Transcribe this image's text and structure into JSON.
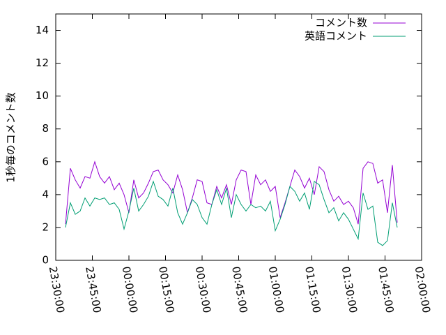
{
  "chart_data": {
    "type": "line",
    "ylabel": "1秒毎のコメント数",
    "x": [
      "23:34:00",
      "23:36:00",
      "23:38:00",
      "23:40:00",
      "23:42:00",
      "23:44:00",
      "23:46:00",
      "23:48:00",
      "23:50:00",
      "23:52:00",
      "23:54:00",
      "23:56:00",
      "23:58:00",
      "00:00:00",
      "00:02:00",
      "00:04:00",
      "00:06:00",
      "00:08:00",
      "00:10:00",
      "00:12:00",
      "00:14:00",
      "00:16:00",
      "00:18:00",
      "00:20:00",
      "00:22:00",
      "00:24:00",
      "00:26:00",
      "00:28:00",
      "00:30:00",
      "00:32:00",
      "00:34:00",
      "00:36:00",
      "00:38:00",
      "00:40:00",
      "00:42:00",
      "00:44:00",
      "00:46:00",
      "00:48:00",
      "00:50:00",
      "00:52:00",
      "00:54:00",
      "00:56:00",
      "00:58:00",
      "01:00:00",
      "01:02:00",
      "01:04:00",
      "01:06:00",
      "01:08:00",
      "01:10:00",
      "01:12:00",
      "01:14:00",
      "01:16:00",
      "01:18:00",
      "01:20:00",
      "01:22:00",
      "01:24:00",
      "01:26:00",
      "01:28:00",
      "01:30:00",
      "01:32:00",
      "01:34:00",
      "01:36:00",
      "01:38:00",
      "01:40:00",
      "01:42:00",
      "01:44:00",
      "01:46:00",
      "01:48:00",
      "01:50:00"
    ],
    "series": [
      {
        "name": "コメント数",
        "color": "#9400d3",
        "values": [
          2.2,
          5.6,
          4.9,
          4.4,
          5.1,
          5.0,
          6.0,
          5.1,
          4.7,
          5.1,
          4.3,
          4.7,
          4.0,
          2.9,
          4.9,
          3.8,
          4.1,
          4.7,
          5.4,
          5.5,
          4.9,
          4.6,
          4.1,
          5.2,
          4.3,
          2.9,
          3.8,
          4.9,
          4.8,
          3.5,
          3.4,
          4.5,
          3.8,
          4.6,
          3.4,
          4.9,
          5.5,
          5.4,
          3.4,
          5.2,
          4.6,
          4.9,
          4.2,
          4.5,
          2.6,
          3.5,
          4.5,
          5.5,
          5.1,
          4.4,
          5.0,
          4.0,
          5.7,
          5.4,
          4.3,
          3.6,
          3.9,
          3.4,
          3.6,
          3.2,
          2.2,
          5.6,
          6.0,
          5.9,
          4.7,
          4.9,
          2.9,
          5.8,
          2.3
        ]
      },
      {
        "name": "英語コメント",
        "color": "#009e73",
        "values": [
          2.0,
          3.5,
          2.8,
          3.0,
          3.8,
          3.3,
          3.8,
          3.7,
          3.8,
          3.4,
          3.5,
          3.1,
          1.9,
          3.0,
          4.4,
          3.0,
          3.4,
          3.9,
          4.8,
          3.9,
          3.7,
          3.3,
          4.4,
          2.9,
          2.2,
          2.9,
          3.7,
          3.4,
          2.6,
          2.2,
          3.4,
          4.3,
          3.4,
          4.4,
          2.6,
          4.0,
          3.4,
          3.0,
          3.4,
          3.2,
          3.3,
          3.0,
          3.6,
          1.8,
          2.5,
          3.4,
          4.5,
          4.2,
          3.6,
          4.1,
          3.1,
          4.8,
          4.6,
          3.7,
          2.9,
          3.2,
          2.4,
          2.9,
          2.5,
          1.9,
          1.3,
          4.1,
          3.1,
          3.3,
          1.1,
          0.9,
          1.2,
          3.5,
          2.0
        ]
      }
    ],
    "xlim": [
      "23:30:00",
      "02:00:00"
    ],
    "xticks": [
      "23:30:00",
      "23:45:00",
      "00:00:00",
      "00:15:00",
      "00:30:00",
      "00:45:00",
      "01:00:00",
      "01:15:00",
      "01:30:00",
      "01:45:00",
      "02:00:00"
    ],
    "ylim": [
      0,
      15
    ],
    "yticks": [
      0,
      2,
      4,
      6,
      8,
      10,
      12,
      14
    ],
    "grid": false,
    "legend": "top-right"
  }
}
